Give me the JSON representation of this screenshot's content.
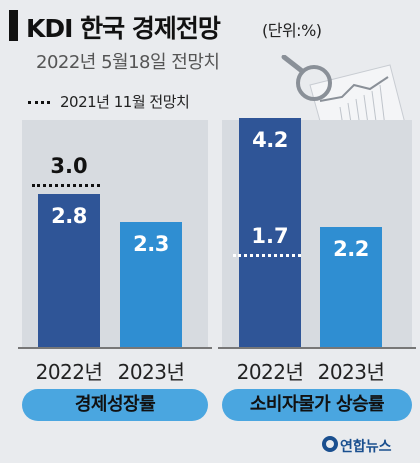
{
  "header": {
    "title": "KDI 한국 경제전망",
    "unit": "(단위:%)",
    "subtitle": "2022년 5월18일 전망치",
    "legend_prev": "2021년 11월 전망치"
  },
  "colors": {
    "bar_dark": "#2f5597",
    "bar_light": "#2f8ed2",
    "pill": "#4aa6e0",
    "panel": "#d7dbe0"
  },
  "chart_data": [
    {
      "type": "bar",
      "group_label": "경제성장률",
      "categories": [
        "2022년",
        "2023년"
      ],
      "values": [
        2.8,
        2.3
      ],
      "value_labels": [
        "2.8",
        "2.3"
      ],
      "previous_forecast": {
        "2022년": 3.0
      },
      "previous_forecast_label": "3.0",
      "ylim": [
        0,
        4.5
      ]
    },
    {
      "type": "bar",
      "group_label": "소비자물가 상승률",
      "categories": [
        "2022년",
        "2023년"
      ],
      "values": [
        4.2,
        2.2
      ],
      "value_labels": [
        "4.2",
        "2.2"
      ],
      "previous_forecast": {
        "2022년": 1.7
      },
      "previous_forecast_label": "1.7",
      "ylim": [
        0,
        4.5
      ]
    }
  ],
  "credit": "연합뉴스"
}
